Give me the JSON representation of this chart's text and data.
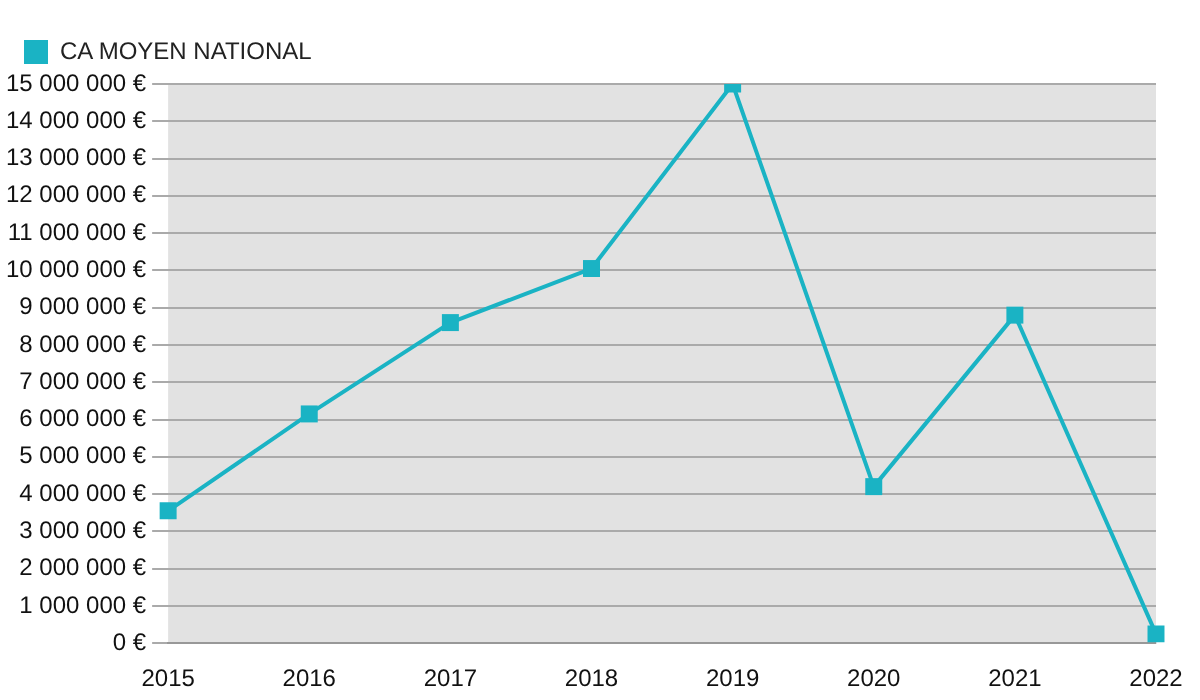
{
  "chart_data": {
    "type": "line",
    "categories": [
      "2015",
      "2016",
      "2017",
      "2018",
      "2019",
      "2020",
      "2021",
      "2022"
    ],
    "series": [
      {
        "name": "CA MOYEN NATIONAL",
        "color": "#1ab3c4",
        "values": [
          3550000,
          6150000,
          8600000,
          10050000,
          15000000,
          4200000,
          8800000,
          250000
        ]
      }
    ],
    "ylim": [
      0,
      15000000
    ],
    "yticks": [
      {
        "value": 0,
        "label": "0 €"
      },
      {
        "value": 1000000,
        "label": "1 000 000 €"
      },
      {
        "value": 2000000,
        "label": "2 000 000 €"
      },
      {
        "value": 3000000,
        "label": "3 000 000 €"
      },
      {
        "value": 4000000,
        "label": "4 000 000 €"
      },
      {
        "value": 5000000,
        "label": "5 000 000 €"
      },
      {
        "value": 6000000,
        "label": "6 000 000 €"
      },
      {
        "value": 7000000,
        "label": "7 000 000 €"
      },
      {
        "value": 8000000,
        "label": "8 000 000 €"
      },
      {
        "value": 9000000,
        "label": "9 000 000 €"
      },
      {
        "value": 10000000,
        "label": "10 000 000 €"
      },
      {
        "value": 11000000,
        "label": "11 000 000 €"
      },
      {
        "value": 12000000,
        "label": "12 000 000 €"
      },
      {
        "value": 13000000,
        "label": "13 000 000 €"
      },
      {
        "value": 14000000,
        "label": "14 000 000 €"
      },
      {
        "value": 15000000,
        "label": "15 000 000 €"
      }
    ],
    "grid": "y",
    "legend": "top left",
    "marker": "square",
    "line_style": "solid"
  }
}
